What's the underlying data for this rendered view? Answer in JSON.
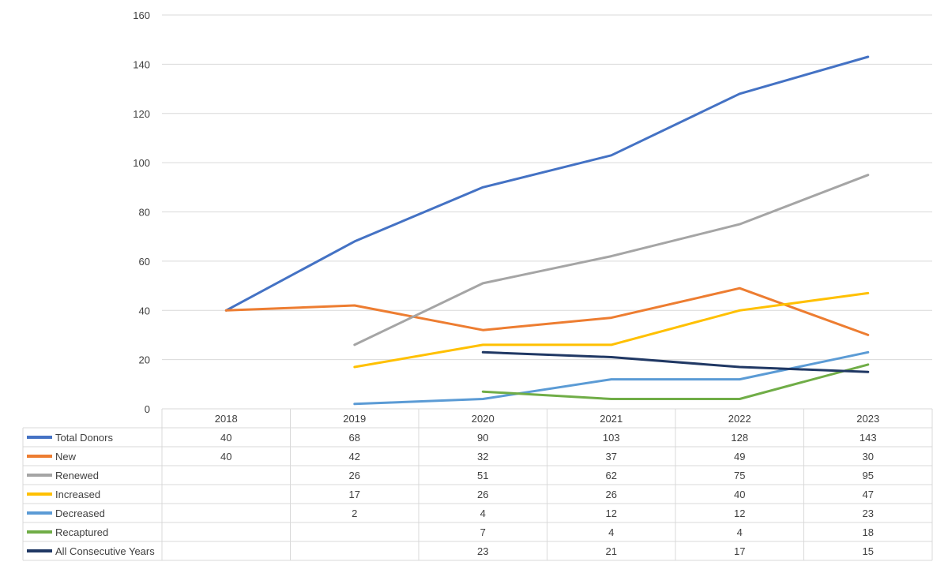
{
  "chart_data": {
    "type": "line",
    "categories": [
      "2018",
      "2019",
      "2020",
      "2021",
      "2022",
      "2023"
    ],
    "ylim": [
      0,
      160
    ],
    "yticks": [
      0,
      20,
      40,
      60,
      80,
      100,
      120,
      140,
      160
    ],
    "grid": true,
    "legend": "data-table",
    "series": [
      {
        "name": "Total Donors",
        "color": "#4472C4",
        "values": [
          40,
          68,
          90,
          103,
          128,
          143
        ]
      },
      {
        "name": "New",
        "color": "#ED7D31",
        "values": [
          40,
          42,
          32,
          37,
          49,
          30
        ]
      },
      {
        "name": "Renewed",
        "color": "#A5A5A5",
        "values": [
          null,
          26,
          51,
          62,
          75,
          95
        ]
      },
      {
        "name": "Increased",
        "color": "#FFC000",
        "values": [
          null,
          17,
          26,
          26,
          40,
          47
        ]
      },
      {
        "name": "Decreased",
        "color": "#5B9BD5",
        "values": [
          null,
          2,
          4,
          12,
          12,
          23
        ]
      },
      {
        "name": "Recaptured",
        "color": "#70AD47",
        "values": [
          null,
          null,
          7,
          4,
          4,
          18
        ]
      },
      {
        "name": "All Consecutive Years",
        "color": "#203864",
        "values": [
          null,
          null,
          23,
          21,
          17,
          15
        ]
      }
    ]
  }
}
